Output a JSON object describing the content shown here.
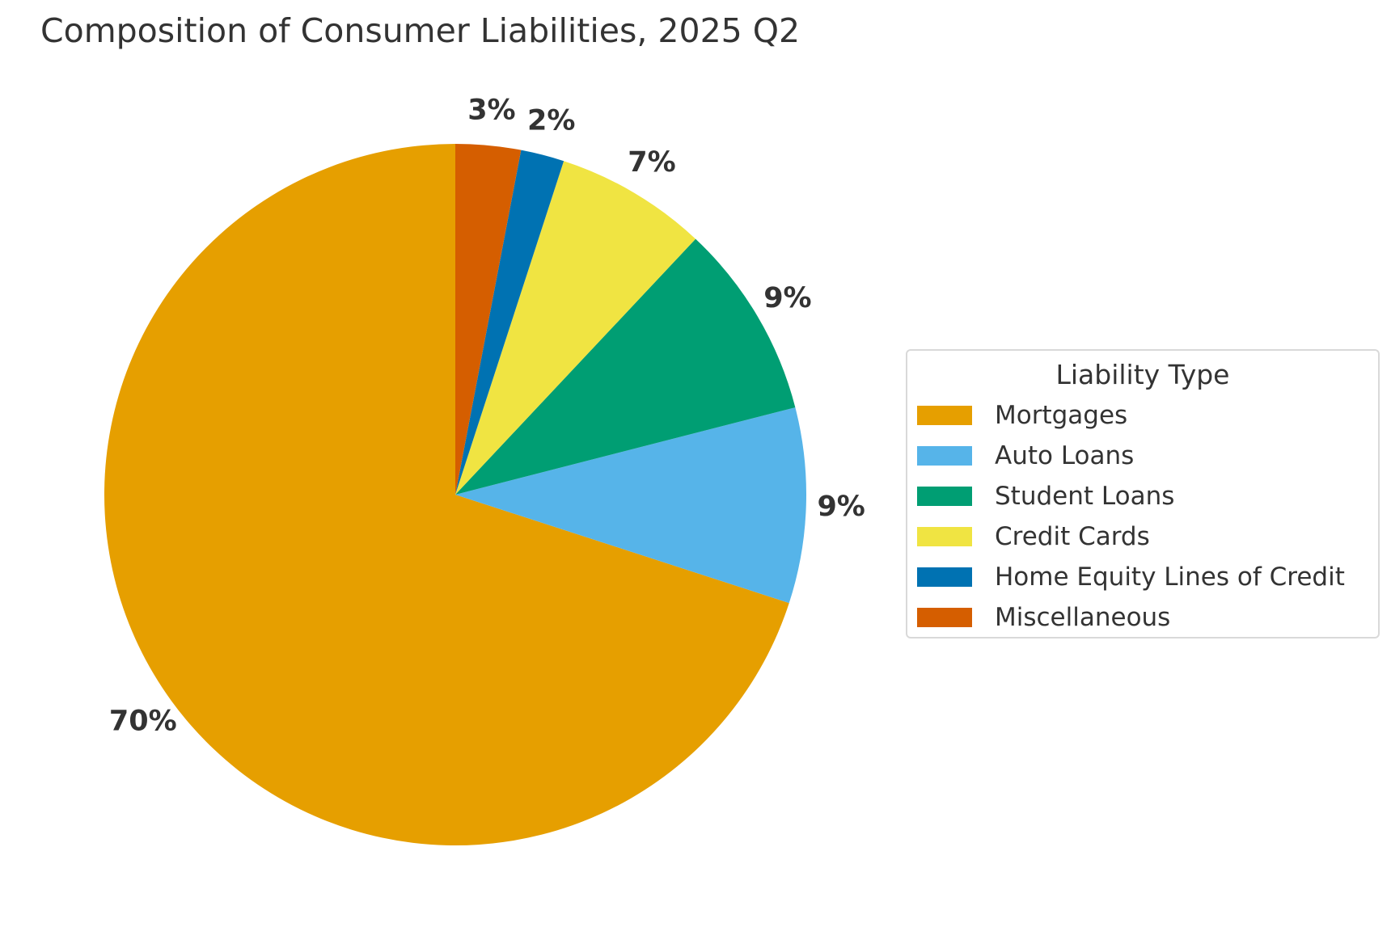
{
  "chart_data": {
    "type": "pie",
    "title": "Composition of Consumer Liabilities, 2025 Q2",
    "legend_title": "Liability Type",
    "legend_position": "right",
    "start_angle": "top (12 o'clock), counterclockwise",
    "slices": [
      {
        "label": "Mortgages",
        "value": 70,
        "display": "70%",
        "color": "#E69F00"
      },
      {
        "label": "Auto Loans",
        "value": 9,
        "display": "9%",
        "color": "#56B4E9"
      },
      {
        "label": "Student Loans",
        "value": 9,
        "display": "9%",
        "color": "#009E73"
      },
      {
        "label": "Credit Cards",
        "value": 7,
        "display": "7%",
        "color": "#F0E442"
      },
      {
        "label": "Home Equity Lines of Credit",
        "value": 2,
        "display": "2%",
        "color": "#0072B2"
      },
      {
        "label": "Miscellaneous",
        "value": 3,
        "display": "3%",
        "color": "#D55E00"
      }
    ]
  }
}
